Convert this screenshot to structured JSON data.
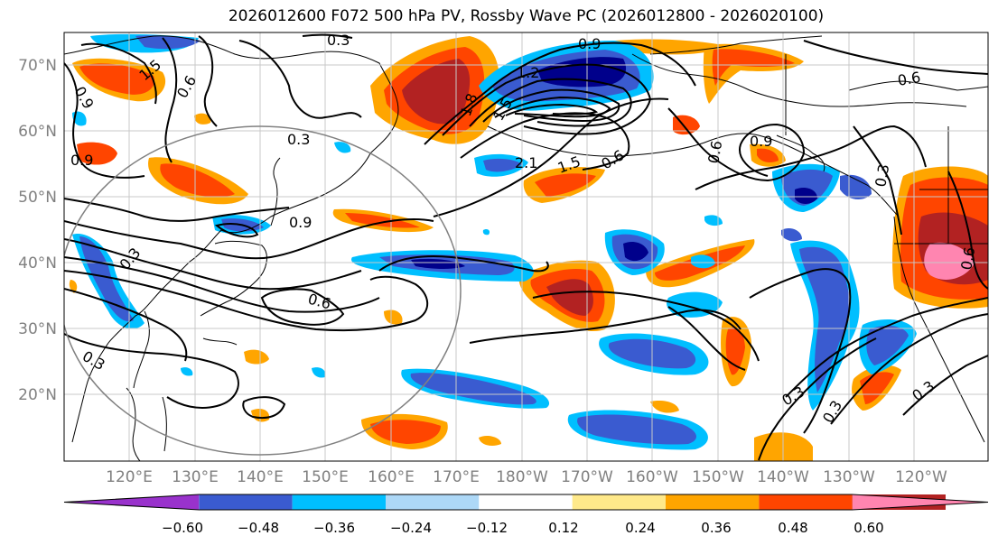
{
  "title": "2026012600 F072 500 hPa PV, Rossby Wave PC (2026012800 - 2026020100)",
  "lat_labels": [
    "70°N",
    "60°N",
    "50°N",
    "40°N",
    "30°N",
    "20°N"
  ],
  "lon_labels": [
    "120°E",
    "130°E",
    "140°E",
    "150°E",
    "160°E",
    "170°E",
    "180°W",
    "170°W",
    "160°W",
    "150°W",
    "140°W",
    "130°W",
    "120°W"
  ],
  "colorbar": {
    "ticks": [
      "−0.60",
      "−0.48",
      "−0.36",
      "−0.24",
      "−0.12",
      "0.12",
      "0.24",
      "0.36",
      "0.48",
      "0.60"
    ],
    "colors": [
      "#9932cc",
      "#00008b",
      "#3a5bd0",
      "#00bfff",
      "#add8f7",
      "#ffffff",
      "#ffe98a",
      "#ffa500",
      "#ff4500",
      "#b22222",
      "#ff85b0"
    ]
  },
  "contour_labels": [
    "0.3",
    "0.9",
    "1.2",
    "1.5",
    "0.9",
    "0.6",
    "0.3",
    "0.9",
    "1.8",
    "1.5",
    "2.1",
    "1.5",
    "0.6",
    "0.9",
    "0.6",
    "0.3",
    "0.6",
    "0.6",
    "0.3",
    "0.9",
    "0.3",
    "0.3",
    "0.6",
    "0.3",
    "0.3"
  ]
}
